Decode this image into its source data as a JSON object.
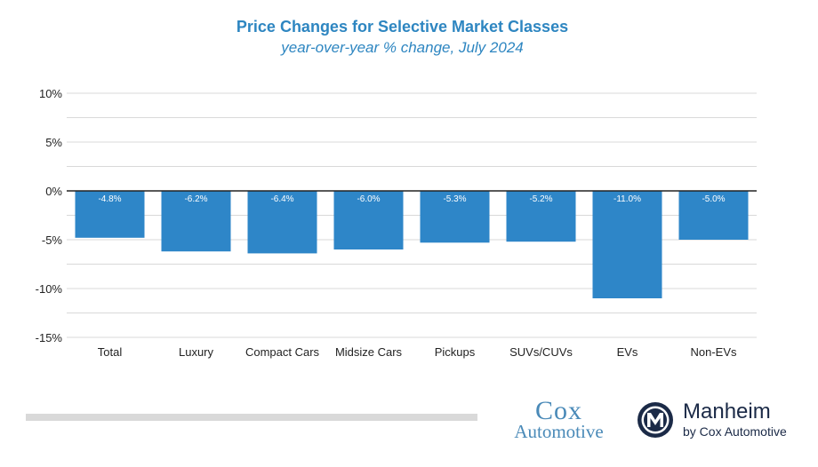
{
  "chart_data": {
    "type": "bar",
    "title": "Price Changes for Selective Market Classes",
    "subtitle": "year-over-year % change, July 2024",
    "categories": [
      "Total",
      "Luxury",
      "Compact Cars",
      "Midsize Cars",
      "Pickups",
      "SUVs/CUVs",
      "EVs",
      "Non-EVs"
    ],
    "values": [
      -4.8,
      -6.2,
      -6.4,
      -6.0,
      -5.3,
      -5.2,
      -11.0,
      -5.0
    ],
    "value_labels": [
      "-4.8%",
      "-6.2%",
      "-6.4%",
      "-6.0%",
      "-5.3%",
      "-5.2%",
      "-11.0%",
      "-5.0%"
    ],
    "ylim": [
      -15,
      10
    ],
    "yticks": [
      10,
      5,
      0,
      -5,
      -10,
      -15
    ],
    "ytick_labels": [
      "10%",
      "5%",
      "0%",
      "-5%",
      "-10%",
      "-15%"
    ],
    "xlabel": "",
    "ylabel": "",
    "grid": true,
    "colors": {
      "bar": "#2e86c8",
      "grid": "#d9d9d9",
      "zero_line": "#222222",
      "title": "#2e86c1"
    }
  },
  "logos": {
    "cox_line1": "Cox",
    "cox_line2": "Automotive",
    "manheim_name": "Manheim",
    "manheim_by": "by Cox Automotive"
  }
}
